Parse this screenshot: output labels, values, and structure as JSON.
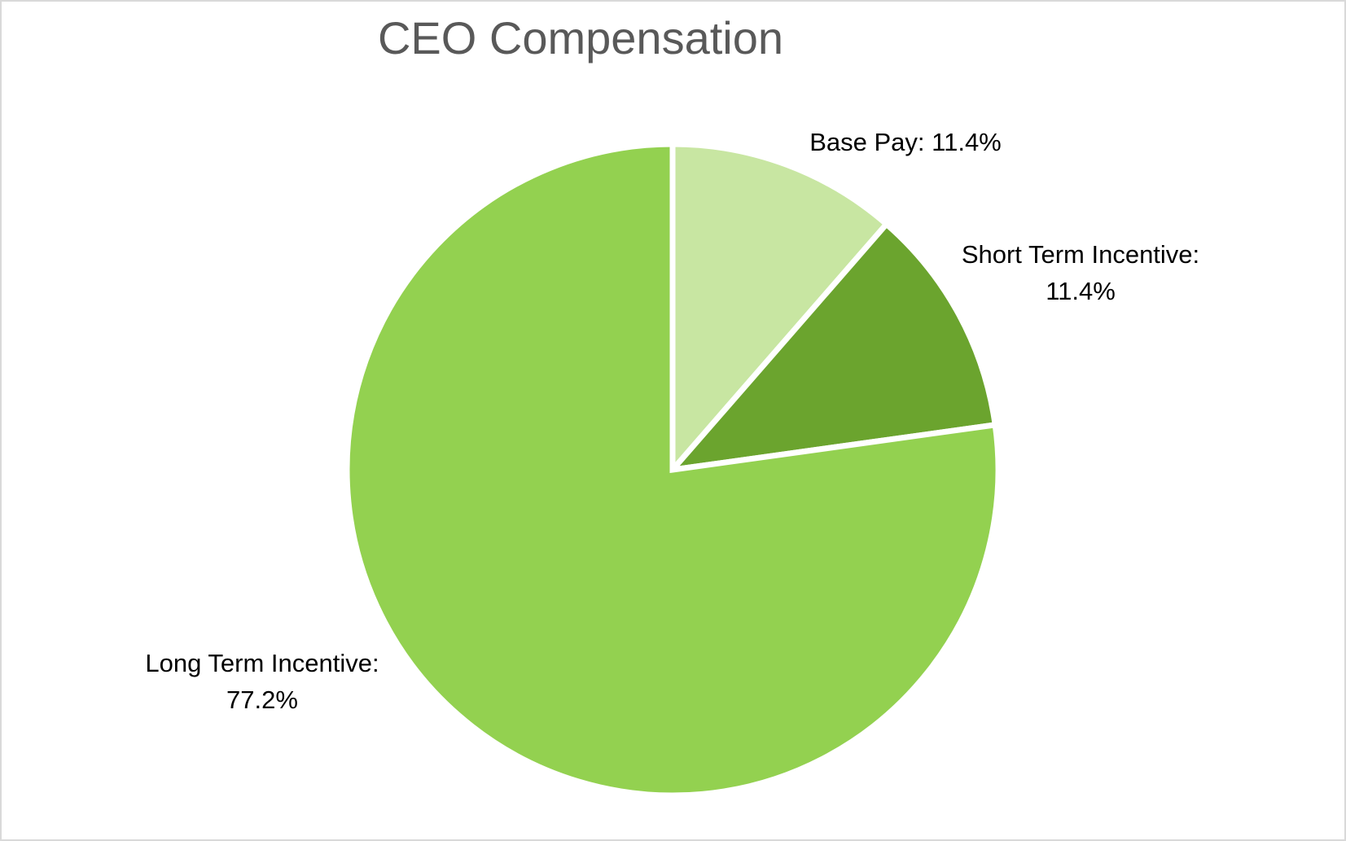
{
  "chart_data": {
    "type": "pie",
    "title": "CEO Compensation",
    "slices": [
      {
        "name": "Base Pay",
        "value": 11.4,
        "label": "Base Pay: 11.4%",
        "color": "#c8e6a2"
      },
      {
        "name": "Short Term Incentive",
        "value": 11.4,
        "label": "Short Term Incentive: 11.4%",
        "color": "#6ba42e"
      },
      {
        "name": "Long Term Incentive",
        "value": 77.2,
        "label": "Long Term Incentive: 77.2%",
        "color": "#93d150"
      }
    ],
    "start_angle": "12 o'clock",
    "direction": "clockwise",
    "legend": "none"
  }
}
